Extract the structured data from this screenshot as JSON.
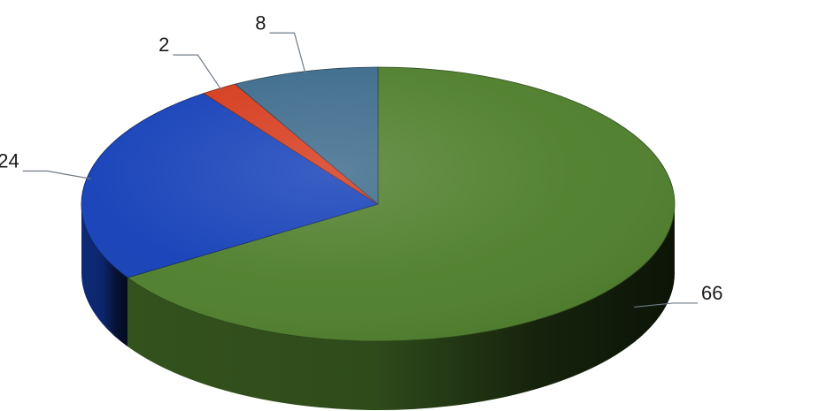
{
  "chart_data": {
    "type": "pie",
    "style": "3d",
    "title": "",
    "legend": "none",
    "slices": [
      {
        "value": 66,
        "label": "66",
        "color": "#4f7f2c"
      },
      {
        "value": 24,
        "label": "24",
        "color": "#1540b8"
      },
      {
        "value": 2,
        "label": "2",
        "color": "#d63a1c"
      },
      {
        "value": 8,
        "label": "8",
        "color": "#3d6b8c"
      }
    ]
  }
}
